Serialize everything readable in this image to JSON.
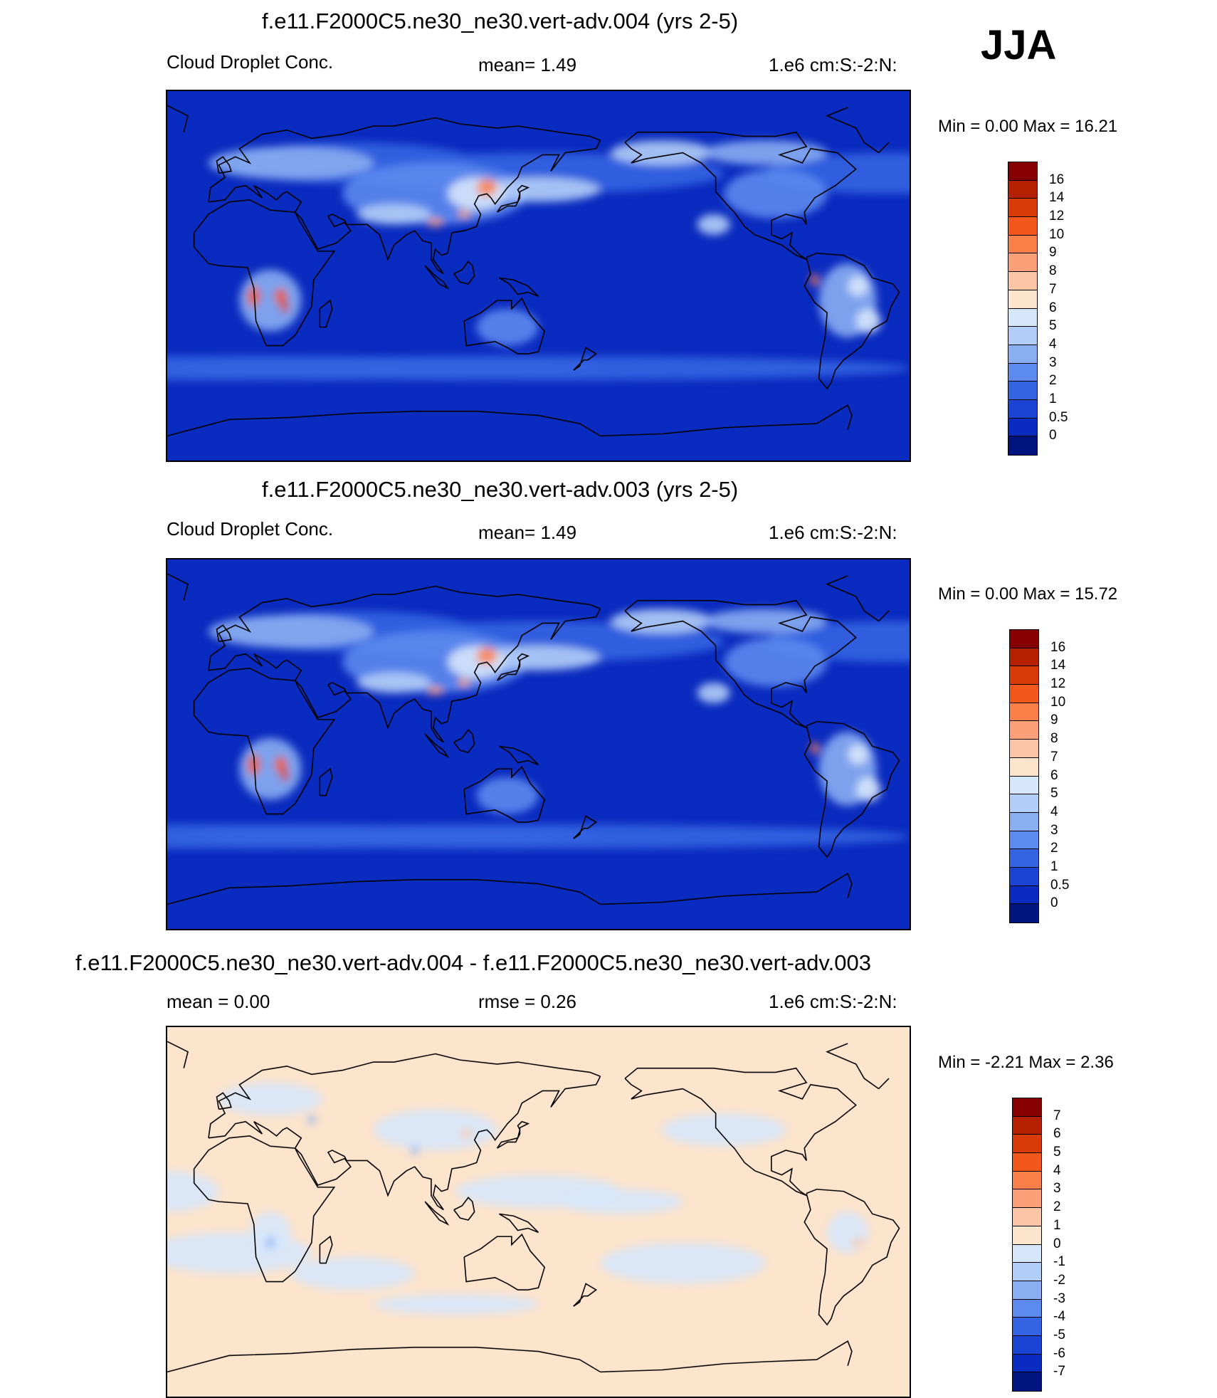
{
  "season": "JJA",
  "panels": [
    {
      "title": "f.e11.F2000C5.ne30_ne30.vert-adv.004 (yrs 2-5)",
      "left_label": "Cloud Droplet Conc.",
      "center_label": "mean=   1.49",
      "right_label": "1.e6 cm:S:-2:N:",
      "minmax": "Min =   0.00 Max =  16.21",
      "field": "abs",
      "colorbar": {
        "labels": [
          "16",
          "14",
          "12",
          "10",
          "9",
          "8",
          "7",
          "6",
          "5",
          "4",
          "3",
          "2",
          "1",
          "0.5",
          "0"
        ],
        "colors": [
          "#870000",
          "#b52000",
          "#d83a08",
          "#f2571c",
          "#fb7f48",
          "#fca079",
          "#fcc6a6",
          "#fde4cd",
          "#d7e7fb",
          "#b2cdf7",
          "#8aaef2",
          "#5c8aee",
          "#3564e2",
          "#1c44d4",
          "#0a2bbf",
          "#00137e"
        ]
      }
    },
    {
      "title": "f.e11.F2000C5.ne30_ne30.vert-adv.003 (yrs 2-5)",
      "left_label": "Cloud Droplet Conc.",
      "center_label": "mean=   1.49",
      "right_label": "1.e6 cm:S:-2:N:",
      "minmax": "Min =   0.00 Max =  15.72",
      "field": "abs",
      "colorbar": {
        "labels": [
          "16",
          "14",
          "12",
          "10",
          "9",
          "8",
          "7",
          "6",
          "5",
          "4",
          "3",
          "2",
          "1",
          "0.5",
          "0"
        ],
        "colors": [
          "#870000",
          "#b52000",
          "#d83a08",
          "#f2571c",
          "#fb7f48",
          "#fca079",
          "#fcc6a6",
          "#fde4cd",
          "#d7e7fb",
          "#b2cdf7",
          "#8aaef2",
          "#5c8aee",
          "#3564e2",
          "#1c44d4",
          "#0a2bbf",
          "#00137e"
        ]
      }
    },
    {
      "title": "f.e11.F2000C5.ne30_ne30.vert-adv.004 - f.e11.F2000C5.ne30_ne30.vert-adv.003",
      "left_label": "mean =   0.00",
      "center_label": "rmse =   0.26",
      "right_label": "1.e6 cm:S:-2:N:",
      "minmax": "Min =  -2.21 Max =   2.36",
      "field": "diff",
      "colorbar": {
        "labels": [
          "7",
          "6",
          "5",
          "4",
          "3",
          "2",
          "1",
          "0",
          "-1",
          "-2",
          "-3",
          "-4",
          "-5",
          "-6",
          "-7"
        ],
        "colors": [
          "#870000",
          "#b52000",
          "#d83a08",
          "#f2571c",
          "#fb7f48",
          "#fca079",
          "#fcc6a6",
          "#fde4cd",
          "#d7e7fb",
          "#b2cdf7",
          "#8aaef2",
          "#5c8aee",
          "#3564e2",
          "#1c44d4",
          "#0a2bbf",
          "#00137e"
        ]
      }
    }
  ]
}
